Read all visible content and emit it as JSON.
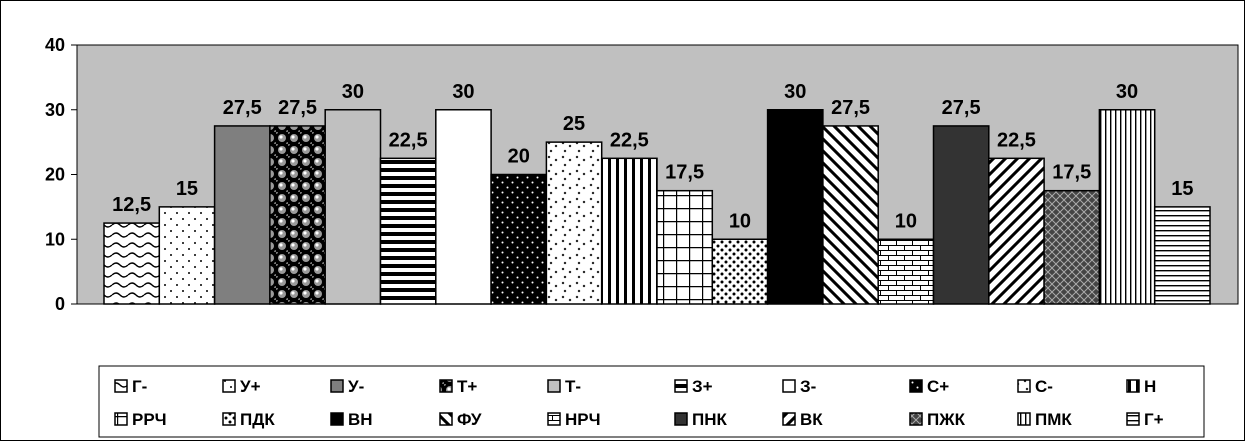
{
  "chart_data": {
    "type": "bar",
    "categories": [
      "Г-",
      "У+",
      "У-",
      "Т+",
      "Т-",
      "З+",
      "З-",
      "С+",
      "С-",
      "Н",
      "РРЧ",
      "ПДК",
      "ВН",
      "ФУ",
      "НРЧ",
      "ПНК",
      "ВК",
      "ПЖК",
      "ПМК",
      "Г+"
    ],
    "values": [
      12.5,
      15,
      27.5,
      27.5,
      30,
      22.5,
      30,
      20,
      25,
      22.5,
      17.5,
      10,
      30,
      27.5,
      10,
      27.5,
      22.5,
      17.5,
      30,
      15
    ],
    "value_labels": [
      "12,5",
      "15",
      "27,5",
      "27,5",
      "30",
      "22,5",
      "30",
      "20",
      "25",
      "22,5",
      "17,5",
      "10",
      "30",
      "27,5",
      "10",
      "27,5",
      "22,5",
      "17,5",
      "30",
      "15"
    ],
    "ylim": [
      0,
      40
    ],
    "yticks": [
      "0",
      "10",
      "20",
      "30",
      "40"
    ],
    "title": "",
    "xlabel": "",
    "ylabel": "",
    "grid": false,
    "plot_background": "#c0c0c0",
    "legend_position": "bottom",
    "legend": [
      {
        "label": "Г-",
        "pattern": "wave"
      },
      {
        "label": "У+",
        "pattern": "dots-sparse"
      },
      {
        "label": "У-",
        "pattern": "solid-gray"
      },
      {
        "label": "Т+",
        "pattern": "spheres"
      },
      {
        "label": "Т-",
        "pattern": "solid-light"
      },
      {
        "label": "З+",
        "pattern": "hlines"
      },
      {
        "label": "З-",
        "pattern": "white"
      },
      {
        "label": "С+",
        "pattern": "dots-dark"
      },
      {
        "label": "С-",
        "pattern": "confetti"
      },
      {
        "label": "Н",
        "pattern": "vlines"
      },
      {
        "label": "РРЧ",
        "pattern": "grid"
      },
      {
        "label": "ПДК",
        "pattern": "dots-dense"
      },
      {
        "label": "ВН",
        "pattern": "black"
      },
      {
        "label": "ФУ",
        "pattern": "diag-down"
      },
      {
        "label": "НРЧ",
        "pattern": "brick"
      },
      {
        "label": "ПНК",
        "pattern": "solid-dark"
      },
      {
        "label": "ВК",
        "pattern": "diag-up"
      },
      {
        "label": "ПЖК",
        "pattern": "checker-diag"
      },
      {
        "label": "ПМК",
        "pattern": "vlines-thin"
      },
      {
        "label": "Г+",
        "pattern": "hlines-thin"
      }
    ]
  }
}
